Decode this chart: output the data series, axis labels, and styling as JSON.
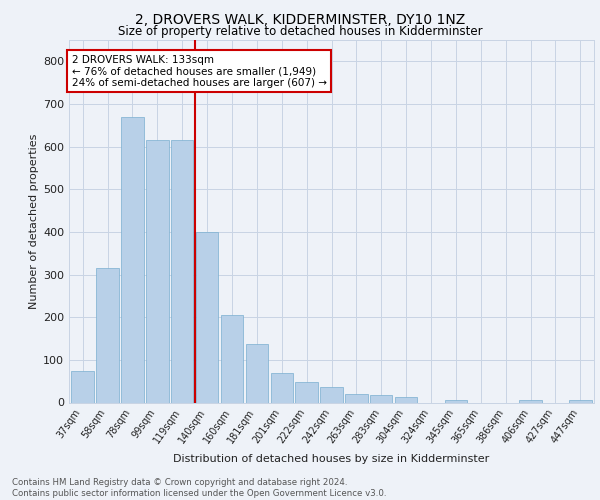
{
  "title": "2, DROVERS WALK, KIDDERMINSTER, DY10 1NZ",
  "subtitle": "Size of property relative to detached houses in Kidderminster",
  "xlabel": "Distribution of detached houses by size in Kidderminster",
  "ylabel": "Number of detached properties",
  "categories": [
    "37sqm",
    "58sqm",
    "78sqm",
    "99sqm",
    "119sqm",
    "140sqm",
    "160sqm",
    "181sqm",
    "201sqm",
    "222sqm",
    "242sqm",
    "263sqm",
    "283sqm",
    "304sqm",
    "324sqm",
    "345sqm",
    "365sqm",
    "386sqm",
    "406sqm",
    "427sqm",
    "447sqm"
  ],
  "values": [
    75,
    315,
    670,
    615,
    615,
    400,
    205,
    137,
    70,
    47,
    37,
    20,
    18,
    12,
    0,
    7,
    0,
    0,
    7,
    0,
    7
  ],
  "bar_color": "#b8d0e8",
  "bar_edge_color": "#7aafd0",
  "vline_x": 4.5,
  "vline_color": "#cc0000",
  "annotation_text": "2 DROVERS WALK: 133sqm\n← 76% of detached houses are smaller (1,949)\n24% of semi-detached houses are larger (607) →",
  "annotation_box_facecolor": "#ffffff",
  "annotation_box_edgecolor": "#cc0000",
  "ylim": [
    0,
    850
  ],
  "yticks": [
    0,
    100,
    200,
    300,
    400,
    500,
    600,
    700,
    800
  ],
  "footer_text": "Contains HM Land Registry data © Crown copyright and database right 2024.\nContains public sector information licensed under the Open Government Licence v3.0.",
  "background_color": "#eef2f8",
  "plot_background": "#eef2f8",
  "grid_color": "#c8d4e4"
}
